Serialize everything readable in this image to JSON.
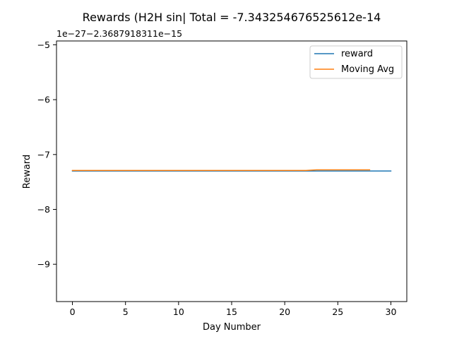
{
  "chart_data": {
    "type": "line",
    "title": "Rewards (H2H sin| Total = -7.343254676525612e-14",
    "xlabel": "Day Number",
    "ylabel": "Reward",
    "offset_text": "1e−27−2.3687918311e−15",
    "xlim": [
      -1.5,
      31.5
    ],
    "ylim": [
      -9.68,
      -4.93
    ],
    "xticks": [
      0,
      5,
      10,
      15,
      20,
      25,
      30
    ],
    "xtick_labels": [
      "0",
      "5",
      "10",
      "15",
      "20",
      "25",
      "30"
    ],
    "yticks": [
      -9,
      -8,
      -7,
      -6,
      -5
    ],
    "ytick_labels": [
      "−9",
      "−8",
      "−7",
      "−6",
      "−5"
    ],
    "grid": false,
    "legend_position": "top-right",
    "series": [
      {
        "name": "reward",
        "color": "#1f77b4",
        "x": [
          0,
          1,
          2,
          3,
          4,
          5,
          6,
          7,
          8,
          9,
          10,
          11,
          12,
          13,
          14,
          15,
          16,
          17,
          18,
          19,
          20,
          21,
          22,
          23,
          24,
          25,
          26,
          27,
          28,
          29,
          30
        ],
        "y": [
          -7.3,
          -7.3,
          -7.3,
          -7.3,
          -7.3,
          -7.3,
          -7.3,
          -7.3,
          -7.3,
          -7.3,
          -7.3,
          -7.3,
          -7.3,
          -7.3,
          -7.3,
          -7.3,
          -7.3,
          -7.3,
          -7.3,
          -7.3,
          -7.3,
          -7.3,
          -7.3,
          -7.3,
          -7.3,
          -7.3,
          -7.3,
          -7.3,
          -7.3,
          -7.3,
          -7.3
        ]
      },
      {
        "name": "Moving Avg",
        "color": "#ff7f0e",
        "x": [
          0,
          1,
          2,
          3,
          4,
          5,
          6,
          7,
          8,
          9,
          10,
          11,
          12,
          13,
          14,
          15,
          16,
          17,
          18,
          19,
          20,
          21,
          22,
          23,
          24,
          25,
          26,
          27,
          28
        ],
        "y": [
          -7.29,
          -7.29,
          -7.29,
          -7.29,
          -7.29,
          -7.29,
          -7.29,
          -7.29,
          -7.29,
          -7.29,
          -7.29,
          -7.29,
          -7.29,
          -7.29,
          -7.29,
          -7.29,
          -7.29,
          -7.29,
          -7.29,
          -7.29,
          -7.29,
          -7.29,
          -7.29,
          -7.28,
          -7.28,
          -7.28,
          -7.28,
          -7.28,
          -7.28
        ]
      }
    ]
  }
}
